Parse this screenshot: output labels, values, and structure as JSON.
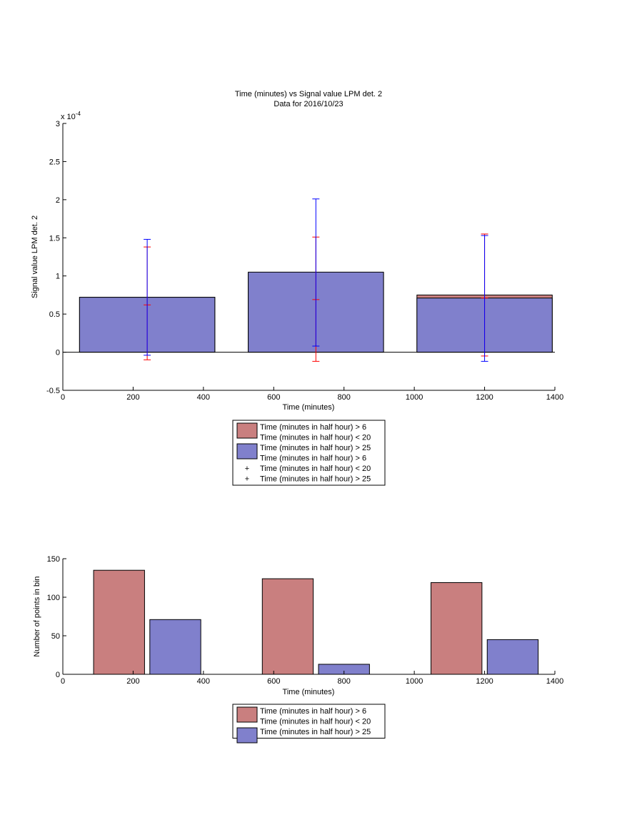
{
  "chart_data": [
    {
      "type": "bar",
      "title": "Time (minutes) vs Signal value LPM det. 2",
      "subtitle": "Data for 2016/10/23",
      "xlabel": "Time (minutes)",
      "ylabel": "Signal value LPM det. 2",
      "exponent_label": "x 10",
      "exponent_power": "-4",
      "scale": 0.0001,
      "xlim": [
        0,
        1400
      ],
      "ylim": [
        -0.5,
        3
      ],
      "xticks": [
        "0",
        "200",
        "400",
        "600",
        "800",
        "1000",
        "1200",
        "1400"
      ],
      "yticks": [
        "-0.5",
        "0",
        "0.5",
        "1",
        "1.5",
        "2",
        "2.5",
        "3"
      ],
      "x": [
        240,
        720,
        1200
      ],
      "bar_width": 385,
      "series": [
        {
          "name": "Time (minutes in half hour) > 6\nTime (minutes in half hour) < 20",
          "color": "#c97f7f",
          "values": [
            0.72,
            1.04,
            0.75
          ],
          "err_low": [
            -0.1,
            -0.12,
            -0.05
          ],
          "err_high": [
            1.38,
            1.51,
            1.55
          ],
          "err_mid": [
            0.62,
            0.69,
            0.71
          ],
          "err_color": "#ff0000"
        },
        {
          "name": "Time (minutes in half hour) > 25",
          "color": "#8080cc",
          "values": [
            0.72,
            1.05,
            0.71
          ],
          "err_low": [
            -0.04,
            0.08,
            -0.12
          ],
          "err_high": [
            1.48,
            2.01,
            1.53
          ],
          "err_color": "#0000ff"
        }
      ],
      "legend": [
        {
          "kind": "patch",
          "color": "#c97f7f",
          "label": "Time (minutes in half hour) > 6"
        },
        {
          "kind": "text",
          "label": "Time (minutes in half hour) < 20"
        },
        {
          "kind": "patch",
          "color": "#8080cc",
          "label": "Time (minutes in half hour) > 25"
        },
        {
          "kind": "text",
          "label": "Time (minutes in half hour) > 6"
        },
        {
          "kind": "marker",
          "color": "#ff0000",
          "label": "Time (minutes in half hour) < 20"
        },
        {
          "kind": "marker",
          "color": "#0000ff",
          "label": "Time (minutes in half hour) > 25"
        }
      ],
      "legend_position": "below"
    },
    {
      "type": "bar",
      "title": "",
      "xlabel": "Time (minutes)",
      "ylabel": "Number of points in bin",
      "xlim": [
        0,
        1400
      ],
      "ylim": [
        0,
        150
      ],
      "xticks": [
        "0",
        "200",
        "400",
        "600",
        "800",
        "1000",
        "1200",
        "1400"
      ],
      "yticks": [
        "0",
        "50",
        "100",
        "150"
      ],
      "bar_width": 145,
      "series": [
        {
          "name": "Time (minutes in half hour) > 6\nTime (minutes in half hour) < 20",
          "color": "#c97f7f",
          "x": [
            160,
            640,
            1120
          ],
          "values": [
            135,
            124,
            119
          ]
        },
        {
          "name": "Time (minutes in half hour) > 25",
          "color": "#8080cc",
          "x": [
            320,
            800,
            1280
          ],
          "values": [
            71,
            13,
            45
          ]
        }
      ],
      "legend": [
        {
          "kind": "patch",
          "color": "#c97f7f",
          "label": "Time (minutes in half hour) > 6"
        },
        {
          "kind": "text",
          "label": "Time (minutes in half hour) < 20"
        },
        {
          "kind": "patch",
          "color": "#8080cc",
          "label": "Time (minutes in half hour) > 25"
        }
      ],
      "legend_position": "below"
    }
  ]
}
